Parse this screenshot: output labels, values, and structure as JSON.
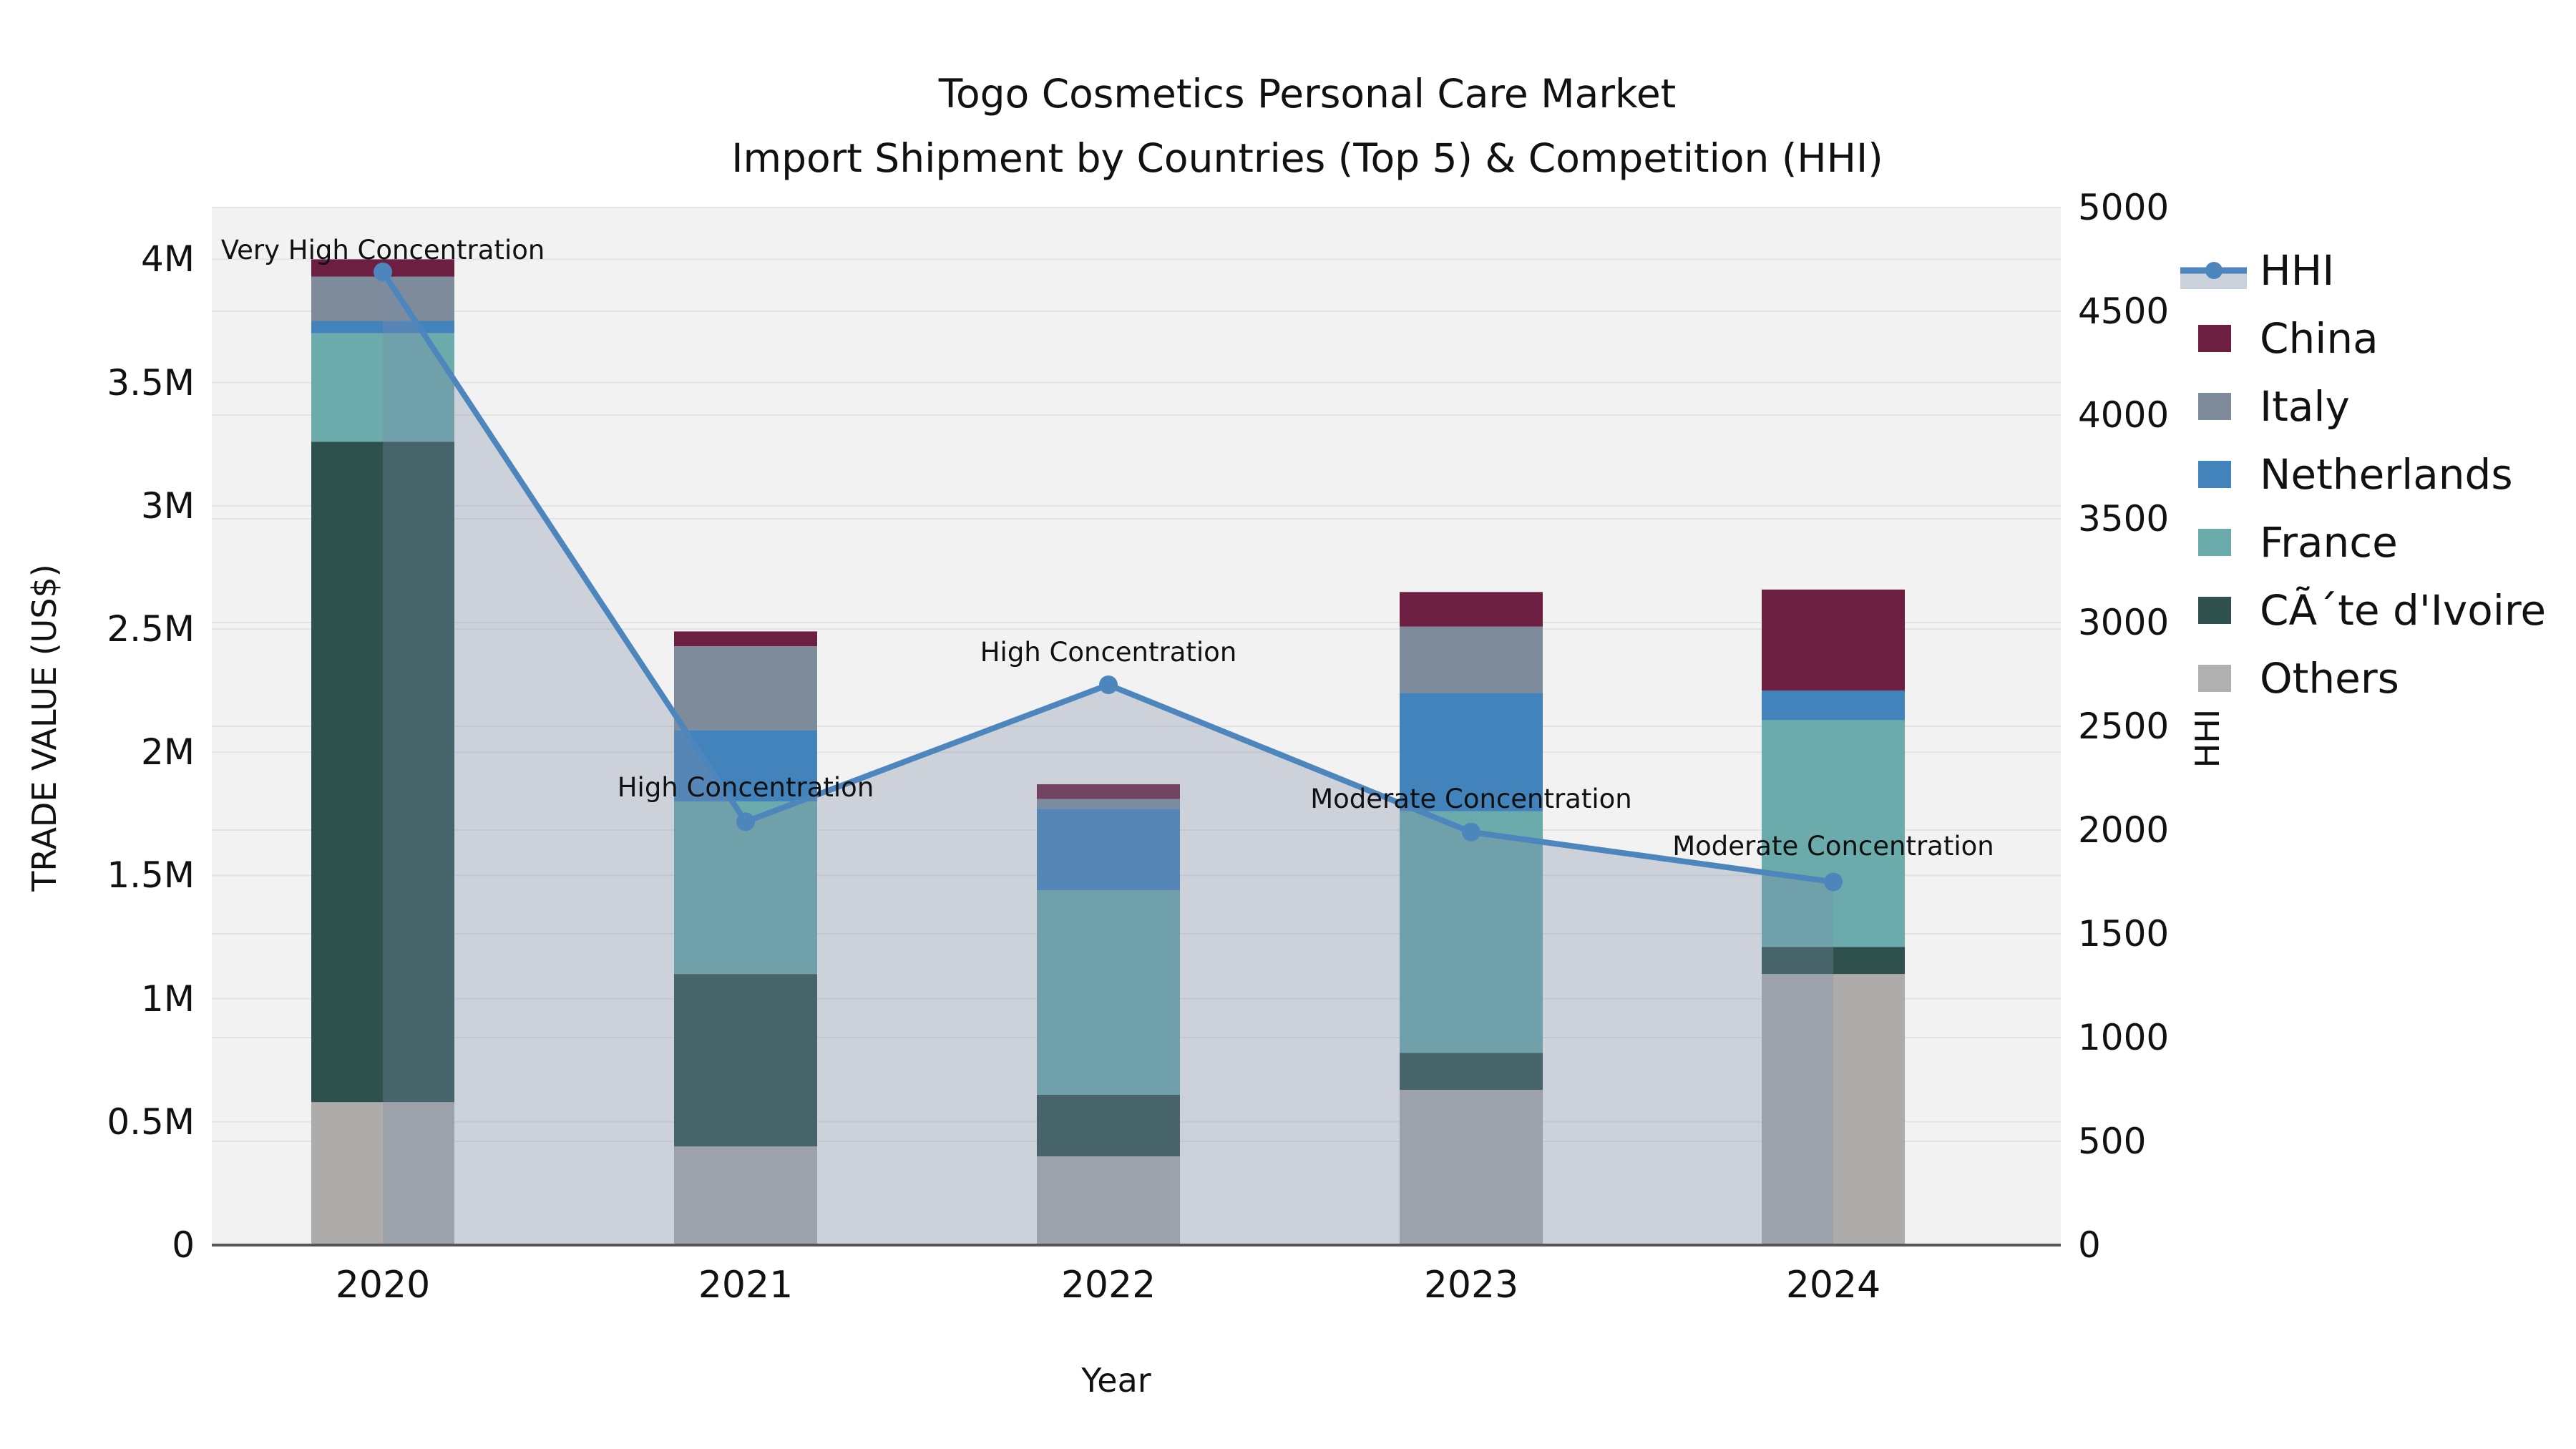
{
  "title": {
    "line1": "Togo Cosmetics Personal Care Market",
    "line2": "Import Shipment by Countries (Top 5) & Competition (HHI)"
  },
  "axes": {
    "x_label": "Year",
    "y_left_label": "TRADE VALUE (US$)",
    "y_right_label": "HHI",
    "y_left_ticks": [
      {
        "label": "0",
        "value": 0
      },
      {
        "label": "0.5M",
        "value": 0.5
      },
      {
        "label": "1M",
        "value": 1.0
      },
      {
        "label": "1.5M",
        "value": 1.5
      },
      {
        "label": "2M",
        "value": 2.0
      },
      {
        "label": "2.5M",
        "value": 2.5
      },
      {
        "label": "3M",
        "value": 3.0
      },
      {
        "label": "3.5M",
        "value": 3.5
      },
      {
        "label": "4M",
        "value": 4.0
      }
    ],
    "y_right_ticks": [
      {
        "label": "0",
        "value": 0
      },
      {
        "label": "500",
        "value": 500
      },
      {
        "label": "1000",
        "value": 1000
      },
      {
        "label": "1500",
        "value": 1500
      },
      {
        "label": "2000",
        "value": 2000
      },
      {
        "label": "2500",
        "value": 2500
      },
      {
        "label": "3000",
        "value": 3000
      },
      {
        "label": "3500",
        "value": 3500
      },
      {
        "label": "4000",
        "value": 4000
      },
      {
        "label": "4500",
        "value": 4500
      },
      {
        "label": "5000",
        "value": 5000
      }
    ],
    "x_ticks": [
      "2020",
      "2021",
      "2022",
      "2023",
      "2024"
    ]
  },
  "legend": {
    "items": [
      {
        "label": "HHI",
        "type": "line",
        "color": "#4c86bd",
        "band_color": "#ccd2db"
      },
      {
        "label": "China",
        "type": "patch",
        "color": "#6d1f42"
      },
      {
        "label": "Italy",
        "type": "patch",
        "color": "#7e8b9b"
      },
      {
        "label": "Netherlands",
        "type": "patch",
        "color": "#4383bb"
      },
      {
        "label": "France",
        "type": "patch",
        "color": "#6babab"
      },
      {
        "label": "CÃ´te d'Ivoire",
        "type": "patch",
        "color": "#2e514e"
      },
      {
        "label": "Others",
        "type": "patch",
        "color": "#b0b0b0"
      }
    ]
  },
  "chart_data": {
    "type": "bar+line",
    "title": "Togo Cosmetics Personal Care Market - Import Shipment by Countries (Top 5) & Competition (HHI)",
    "categories": [
      "2020",
      "2021",
      "2022",
      "2023",
      "2024"
    ],
    "stack_unit": "million US$ (trade value, left axis)",
    "series": [
      {
        "name": "Others",
        "color": "#adacab",
        "values": [
          0.58,
          0.4,
          0.36,
          0.63,
          1.1
        ]
      },
      {
        "name": "CÃ´te d'Ivoire",
        "color": "#2e514e",
        "values": [
          2.68,
          0.7,
          0.25,
          0.15,
          0.11
        ]
      },
      {
        "name": "France",
        "color": "#6babab",
        "values": [
          0.44,
          0.7,
          0.83,
          0.98,
          0.92
        ]
      },
      {
        "name": "Netherlands",
        "color": "#4383bb",
        "values": [
          0.05,
          0.29,
          0.33,
          0.48,
          0.12
        ]
      },
      {
        "name": "Italy",
        "color": "#7e8b9b",
        "values": [
          0.18,
          0.34,
          0.04,
          0.27,
          0.0
        ]
      },
      {
        "name": "China",
        "color": "#6d1f42",
        "values": [
          0.07,
          0.06,
          0.06,
          0.14,
          0.41
        ]
      }
    ],
    "bar_totals_musd": [
      4.0,
      2.49,
      1.87,
      2.65,
      2.66
    ],
    "line_series": {
      "name": "HHI",
      "color": "#4c86bd",
      "area_fill": "rgba(125,140,168,0.32)",
      "values": [
        4690,
        2040,
        2700,
        1990,
        1750
      ]
    },
    "annotations": [
      {
        "category": "2020",
        "text": "Very High Concentration"
      },
      {
        "category": "2021",
        "text": "High Concentration"
      },
      {
        "category": "2022",
        "text": "High Concentration"
      },
      {
        "category": "2023",
        "text": "Moderate Concentration"
      },
      {
        "category": "2024",
        "text": "Moderate Concentration"
      }
    ],
    "xlabel": "Year",
    "ylabel": "TRADE VALUE (US$)",
    "y2label": "HHI",
    "ylim_left_musd": [
      0,
      4.2
    ],
    "ylim_right": [
      0,
      5000
    ],
    "grid": true,
    "legend_position": "right",
    "plot_background": "#f2f2f2",
    "gridline_color": "#e3e3e3",
    "spine_color": "#555555"
  }
}
